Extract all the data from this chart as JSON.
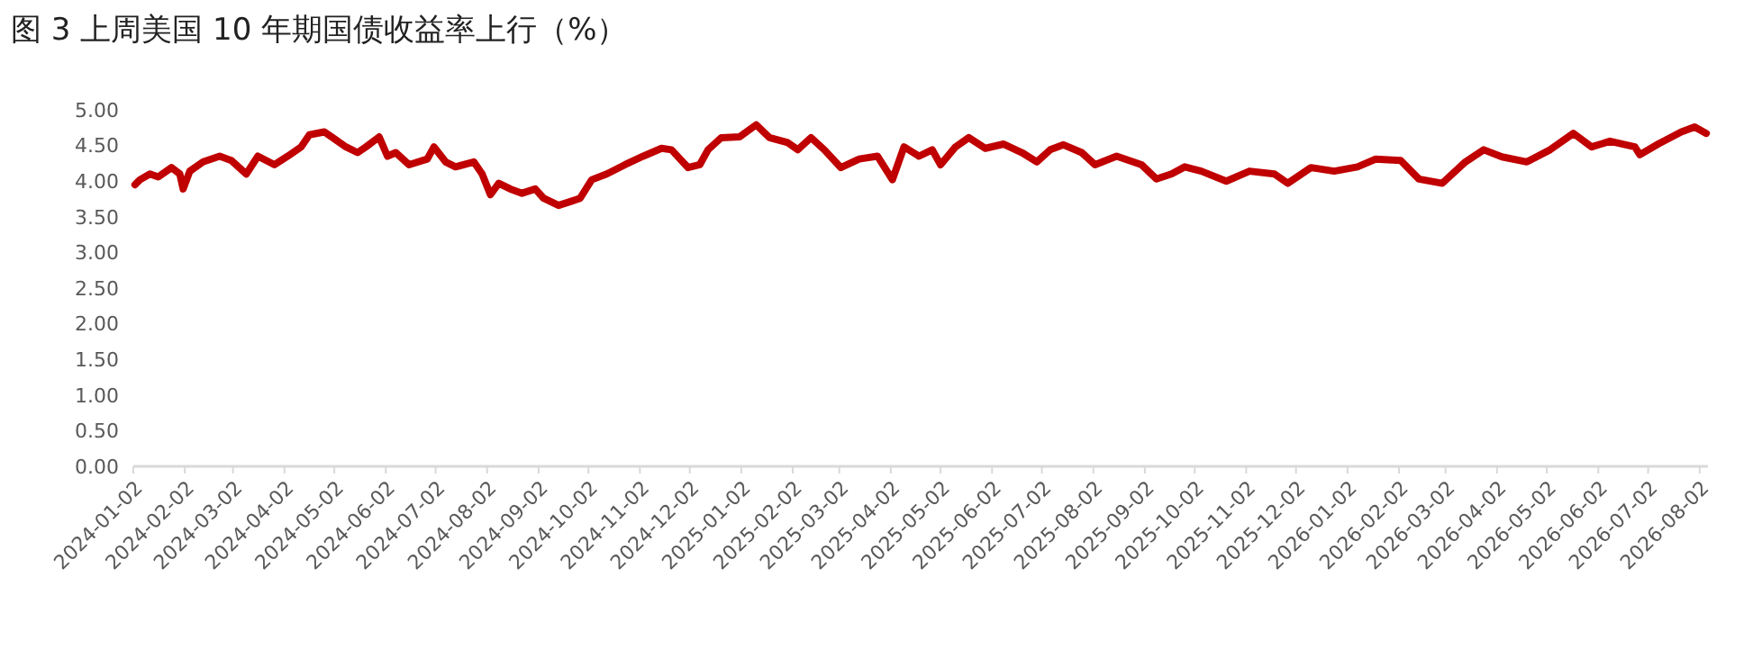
{
  "chart_data": {
    "type": "line",
    "title": "图 3 上周美国 10 年期国债收益率上行（%）",
    "xlim": [
      "2024-01-02",
      "2026-08-07"
    ],
    "xticks": [
      "2024-01-02",
      "2024-02-02",
      "2024-03-02",
      "2024-04-02",
      "2024-05-02",
      "2024-06-02",
      "2024-07-02",
      "2024-08-02",
      "2024-09-02",
      "2024-10-02",
      "2024-11-02",
      "2024-12-02",
      "2025-01-02",
      "2025-02-02",
      "2025-03-02",
      "2025-04-02",
      "2025-05-02",
      "2025-06-02",
      "2025-07-02",
      "2025-08-02",
      "2025-09-02",
      "2025-10-02",
      "2025-11-02",
      "2025-12-02",
      "2026-01-02",
      "2026-02-02",
      "2026-03-02",
      "2026-04-02",
      "2026-05-02",
      "2026-06-02",
      "2026-07-02",
      "2026-08-02"
    ],
    "ylim": [
      0,
      5
    ],
    "yticks": [
      {
        "value": 0,
        "label": "0.00"
      },
      {
        "value": 0.5,
        "label": "0.50"
      },
      {
        "value": 1,
        "label": "1.00"
      },
      {
        "value": 1.5,
        "label": "1.50"
      },
      {
        "value": 2,
        "label": "2.00"
      },
      {
        "value": 2.5,
        "label": "2.50"
      },
      {
        "value": 3,
        "label": "3.00"
      },
      {
        "value": 3.5,
        "label": "3.50"
      },
      {
        "value": 4,
        "label": "4.00"
      },
      {
        "value": 4.5,
        "label": "4.50"
      },
      {
        "value": 5,
        "label": "5.00"
      }
    ],
    "grid": false,
    "marker": "none",
    "line_style": "solid",
    "x": [
      "2024-01-03",
      "2024-01-06",
      "2024-01-12",
      "2024-01-17",
      "2024-01-25",
      "2024-01-30",
      "2024-02-01",
      "2024-02-05",
      "2024-02-13",
      "2024-02-23",
      "2024-03-01",
      "2024-03-10",
      "2024-03-17",
      "2024-03-27",
      "2024-04-04",
      "2024-04-12",
      "2024-04-17",
      "2024-04-26",
      "2024-05-01",
      "2024-05-09",
      "2024-05-16",
      "2024-05-21",
      "2024-05-29",
      "2024-06-03",
      "2024-06-08",
      "2024-06-16",
      "2024-06-27",
      "2024-07-01",
      "2024-07-08",
      "2024-07-14",
      "2024-07-25",
      "2024-07-30",
      "2024-08-04",
      "2024-08-09",
      "2024-08-16",
      "2024-08-23",
      "2024-08-31",
      "2024-09-05",
      "2024-09-14",
      "2024-09-22",
      "2024-09-27",
      "2024-10-04",
      "2024-10-13",
      "2024-10-24",
      "2024-11-04",
      "2024-11-15",
      "2024-11-21",
      "2024-12-01",
      "2024-12-08",
      "2024-12-13",
      "2024-12-21",
      "2025-01-01",
      "2025-01-11",
      "2025-01-19",
      "2025-01-30",
      "2025-02-05",
      "2025-02-13",
      "2025-02-21",
      "2025-03-03",
      "2025-03-14",
      "2025-03-25",
      "2025-04-03",
      "2025-04-10",
      "2025-04-19",
      "2025-04-27",
      "2025-05-02",
      "2025-05-11",
      "2025-05-19",
      "2025-05-29",
      "2025-06-09",
      "2025-06-20",
      "2025-06-29",
      "2025-07-07",
      "2025-07-15",
      "2025-07-26",
      "2025-08-03",
      "2025-08-16",
      "2025-08-31",
      "2025-09-09",
      "2025-09-18",
      "2025-09-26",
      "2025-10-06",
      "2025-10-21",
      "2025-11-04",
      "2025-11-19",
      "2025-11-27",
      "2025-12-11",
      "2025-12-25",
      "2026-01-08",
      "2026-01-19",
      "2026-02-03",
      "2026-02-14",
      "2026-02-28",
      "2026-03-14",
      "2026-03-25",
      "2026-04-05",
      "2026-04-20",
      "2026-05-04",
      "2026-05-18",
      "2026-05-29",
      "2026-06-09",
      "2026-06-24",
      "2026-06-27",
      "2026-07-08",
      "2026-07-22",
      "2026-07-30",
      "2026-08-06"
    ],
    "series": [
      {
        "color": "#c00000",
        "values": [
          3.95,
          4.02,
          4.1,
          4.06,
          4.19,
          4.1,
          3.89,
          4.14,
          4.27,
          4.35,
          4.29,
          4.1,
          4.35,
          4.23,
          4.35,
          4.48,
          4.65,
          4.69,
          4.61,
          4.48,
          4.4,
          4.48,
          4.62,
          4.35,
          4.4,
          4.23,
          4.31,
          4.48,
          4.27,
          4.2,
          4.27,
          4.1,
          3.81,
          3.97,
          3.89,
          3.83,
          3.89,
          3.76,
          3.66,
          3.72,
          3.76,
          4.02,
          4.1,
          4.23,
          4.35,
          4.46,
          4.44,
          4.19,
          4.23,
          4.44,
          4.61,
          4.62,
          4.79,
          4.61,
          4.54,
          4.44,
          4.61,
          4.44,
          4.19,
          4.31,
          4.35,
          4.02,
          4.48,
          4.35,
          4.44,
          4.23,
          4.48,
          4.61,
          4.46,
          4.52,
          4.4,
          4.27,
          4.44,
          4.51,
          4.4,
          4.23,
          4.35,
          4.23,
          4.03,
          4.1,
          4.2,
          4.14,
          4.0,
          4.14,
          4.1,
          3.97,
          4.19,
          4.14,
          4.2,
          4.31,
          4.29,
          4.03,
          3.97,
          4.27,
          4.44,
          4.34,
          4.27,
          4.44,
          4.67,
          4.48,
          4.56,
          4.48,
          4.37,
          4.52,
          4.69,
          4.76,
          4.67
        ]
      }
    ]
  }
}
